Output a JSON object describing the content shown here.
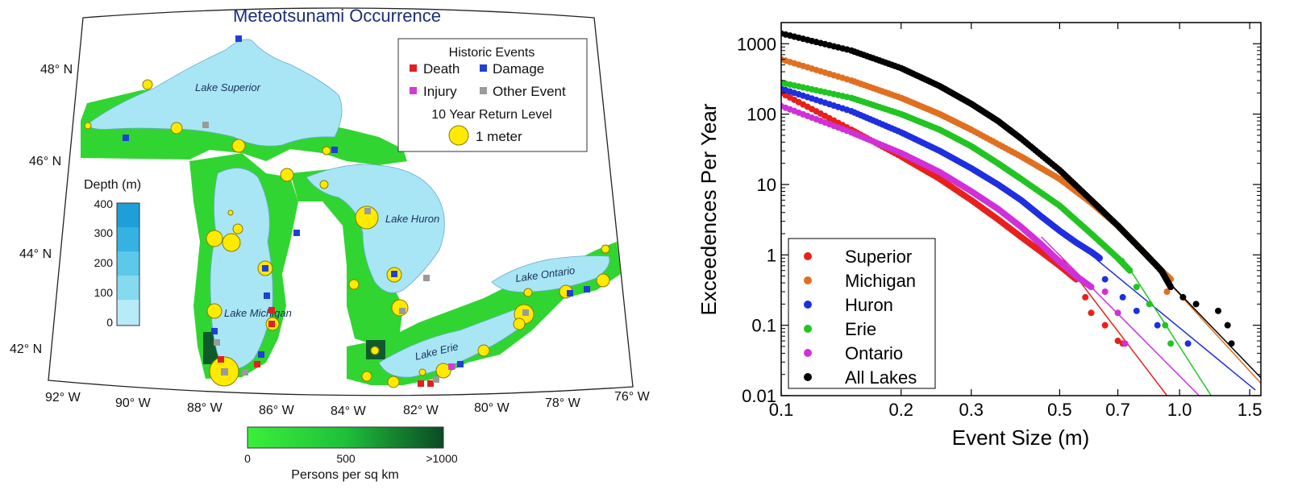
{
  "map": {
    "title": "Meteotsunami Occurrence",
    "lakes": [
      "Lake Superior",
      "Lake Michigan",
      "Lake Huron",
      "Lake Erie",
      "Lake Ontario"
    ],
    "lat_labels": [
      "48° N",
      "46° N",
      "44° N",
      "42° N"
    ],
    "lon_labels": [
      "92° W",
      "90° W",
      "88° W",
      "86° W",
      "84° W",
      "82° W",
      "80° W",
      "78° W",
      "76° W"
    ],
    "legend": {
      "title": "Historic Events",
      "items": [
        {
          "label": "Death",
          "color": "#e02020"
        },
        {
          "label": "Damage",
          "color": "#1f3fd6"
        },
        {
          "label": "Injury",
          "color": "#d43ad6"
        },
        {
          "label": "Other Event",
          "color": "#9a9a9a"
        }
      ],
      "return_level_title": "10 Year Return Level",
      "return_level_label": "1 meter"
    },
    "depth": {
      "title": "Depth (m)",
      "ticks": [
        "400",
        "300",
        "200",
        "100",
        "0"
      ]
    },
    "population": {
      "title": "Persons per sq km",
      "ticks": [
        "0",
        "500",
        ">1000"
      ]
    }
  },
  "chart_data": {
    "type": "scatter",
    "xlabel": "Event Size (m)",
    "ylabel": "Exceedences Per Year",
    "x_scale": "log",
    "y_scale": "log",
    "xlim": [
      0.1,
      1.6
    ],
    "ylim": [
      0.01,
      2000
    ],
    "xticks": [
      "0.1",
      "0.2",
      "0.3",
      "0.5",
      "0.7",
      "1.0",
      "1.5"
    ],
    "xtick_values": [
      0.1,
      0.2,
      0.3,
      0.5,
      0.7,
      1.0,
      1.5
    ],
    "yticks": [
      "1000",
      "100",
      "10",
      "1",
      "0.1",
      "0.01"
    ],
    "ytick_values": [
      1000,
      100,
      10,
      1,
      0.1,
      0.01
    ],
    "legend_position": "bottom-left",
    "series": [
      {
        "name": "Superior",
        "color": "#e8201c",
        "dense_curve": [
          [
            0.1,
            200
          ],
          [
            0.15,
            60
          ],
          [
            0.2,
            25
          ],
          [
            0.25,
            12
          ],
          [
            0.3,
            6
          ],
          [
            0.35,
            3.2
          ],
          [
            0.4,
            1.8
          ],
          [
            0.45,
            1.1
          ],
          [
            0.5,
            0.7
          ],
          [
            0.55,
            0.45
          ]
        ],
        "tail_points": [
          [
            0.58,
            0.25
          ],
          [
            0.6,
            0.15
          ],
          [
            0.65,
            0.1
          ],
          [
            0.7,
            0.06
          ],
          [
            0.72,
            0.055
          ]
        ],
        "fit_line": [
          [
            0.5,
            1.0
          ],
          [
            0.93,
            0.01
          ]
        ]
      },
      {
        "name": "Michigan",
        "color": "#e07020",
        "dense_curve": [
          [
            0.1,
            600
          ],
          [
            0.15,
            300
          ],
          [
            0.2,
            170
          ],
          [
            0.25,
            100
          ],
          [
            0.3,
            60
          ],
          [
            0.4,
            25
          ],
          [
            0.5,
            12
          ],
          [
            0.6,
            5.5
          ],
          [
            0.7,
            2.6
          ],
          [
            0.8,
            1.2
          ],
          [
            0.9,
            0.6
          ],
          [
            0.95,
            0.45
          ]
        ],
        "tail_points": [
          [
            0.93,
            0.3
          ]
        ],
        "fit_line": [
          [
            0.85,
            0.75
          ],
          [
            1.6,
            0.015
          ]
        ]
      },
      {
        "name": "Huron",
        "color": "#1f2ee0",
        "dense_curve": [
          [
            0.1,
            230
          ],
          [
            0.15,
            110
          ],
          [
            0.2,
            55
          ],
          [
            0.25,
            30
          ],
          [
            0.3,
            17
          ],
          [
            0.35,
            10
          ],
          [
            0.4,
            6
          ],
          [
            0.45,
            3.5
          ],
          [
            0.5,
            2.2
          ],
          [
            0.55,
            1.5
          ],
          [
            0.6,
            1.1
          ],
          [
            0.63,
            0.9
          ]
        ],
        "tail_points": [
          [
            0.65,
            0.45
          ],
          [
            0.72,
            0.25
          ],
          [
            0.78,
            0.16
          ],
          [
            0.88,
            0.1
          ],
          [
            1.05,
            0.055
          ]
        ],
        "fit_line": [
          [
            0.62,
            0.85
          ],
          [
            1.55,
            0.012
          ]
        ]
      },
      {
        "name": "Erie",
        "color": "#22c422",
        "dense_curve": [
          [
            0.1,
            280
          ],
          [
            0.15,
            170
          ],
          [
            0.2,
            100
          ],
          [
            0.25,
            60
          ],
          [
            0.3,
            35
          ],
          [
            0.35,
            20
          ],
          [
            0.4,
            12
          ],
          [
            0.5,
            5
          ],
          [
            0.6,
            2
          ],
          [
            0.7,
            0.9
          ],
          [
            0.75,
            0.6
          ]
        ],
        "tail_points": [
          [
            0.78,
            0.35
          ],
          [
            0.84,
            0.2
          ],
          [
            0.92,
            0.1
          ],
          [
            0.95,
            0.055
          ]
        ],
        "fit_line": [
          [
            0.72,
            0.9
          ],
          [
            1.2,
            0.01
          ]
        ]
      },
      {
        "name": "Ontario",
        "color": "#d030d8",
        "dense_curve": [
          [
            0.1,
            130
          ],
          [
            0.15,
            55
          ],
          [
            0.2,
            28
          ],
          [
            0.25,
            15
          ],
          [
            0.3,
            8
          ],
          [
            0.35,
            4.5
          ],
          [
            0.4,
            2.5
          ],
          [
            0.45,
            1.4
          ],
          [
            0.5,
            0.8
          ],
          [
            0.55,
            0.5
          ],
          [
            0.6,
            0.35
          ]
        ],
        "tail_points": [
          [
            0.65,
            0.3
          ],
          [
            0.7,
            0.15
          ],
          [
            0.73,
            0.055
          ]
        ],
        "fit_line": [
          [
            0.45,
            1.8
          ],
          [
            1.12,
            0.01
          ]
        ]
      },
      {
        "name": "All Lakes",
        "color": "#000000",
        "dense_curve": [
          [
            0.1,
            1400
          ],
          [
            0.15,
            800
          ],
          [
            0.2,
            450
          ],
          [
            0.25,
            250
          ],
          [
            0.3,
            140
          ],
          [
            0.35,
            80
          ],
          [
            0.4,
            45
          ],
          [
            0.5,
            16
          ],
          [
            0.6,
            6
          ],
          [
            0.7,
            2.6
          ],
          [
            0.8,
            1.2
          ],
          [
            0.9,
            0.6
          ],
          [
            0.95,
            0.35
          ]
        ],
        "tail_points": [
          [
            1.02,
            0.25
          ],
          [
            1.1,
            0.2
          ],
          [
            1.25,
            0.16
          ],
          [
            1.32,
            0.1
          ],
          [
            1.35,
            0.055
          ]
        ],
        "fit_line": [
          [
            0.88,
            0.6
          ],
          [
            1.65,
            0.015
          ]
        ]
      }
    ]
  }
}
